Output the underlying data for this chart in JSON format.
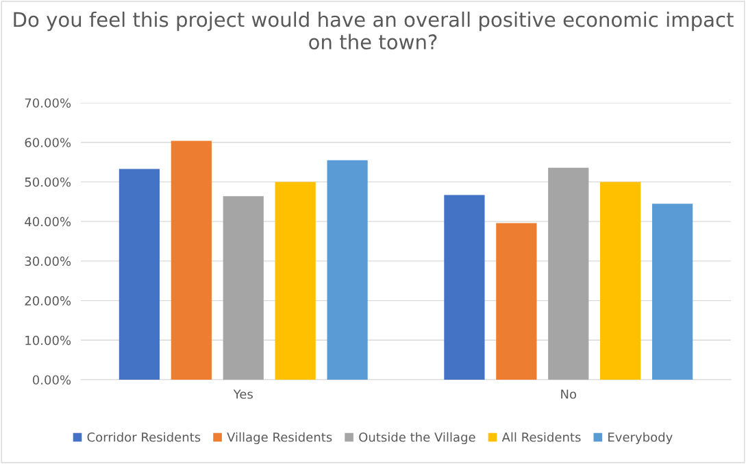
{
  "chart_data": {
    "type": "bar",
    "title": "Do you feel this project would have an overall positive economic impact on the town?",
    "categories": [
      "Yes",
      "No"
    ],
    "series": [
      {
        "name": "Corridor Residents",
        "color": "#4472c4",
        "values": [
          53.3,
          46.7
        ]
      },
      {
        "name": "Village Residents",
        "color": "#ed7d31",
        "values": [
          60.4,
          39.6
        ]
      },
      {
        "name": "Outside the Village",
        "color": "#a5a5a5",
        "values": [
          46.4,
          53.6
        ]
      },
      {
        "name": "All Residents",
        "color": "#ffc000",
        "values": [
          50.0,
          50.0
        ]
      },
      {
        "name": "Everybody",
        "color": "#5b9bd5",
        "values": [
          55.5,
          44.5
        ]
      }
    ],
    "ylim": [
      0,
      70
    ],
    "yticks": [
      {
        "value": 0,
        "label": "0.00%"
      },
      {
        "value": 10,
        "label": "10.00%"
      },
      {
        "value": 20,
        "label": "20.00%"
      },
      {
        "value": 30,
        "label": "30.00%"
      },
      {
        "value": 40,
        "label": "40.00%"
      },
      {
        "value": 50,
        "label": "50.00%"
      },
      {
        "value": 60,
        "label": "60.00%"
      },
      {
        "value": 70,
        "label": "70.00%"
      }
    ],
    "grid": "y",
    "legend": "bottom"
  }
}
